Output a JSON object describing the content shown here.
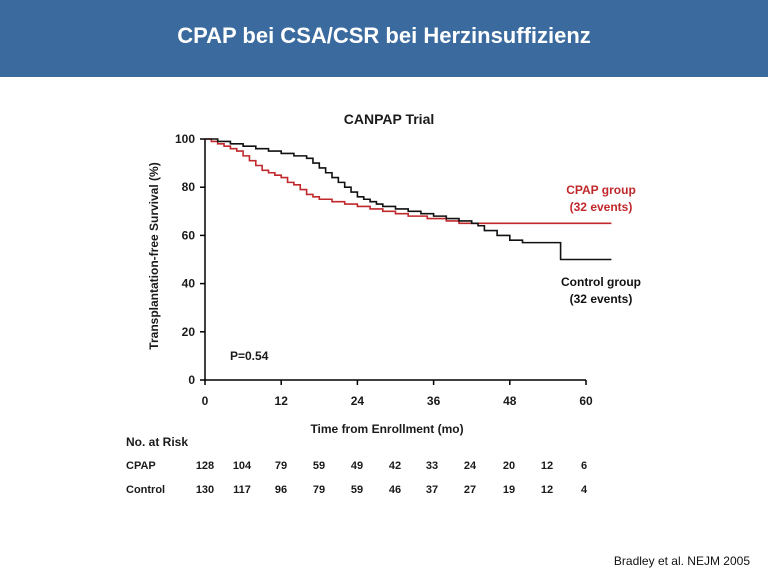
{
  "header": {
    "title": "CPAP bei CSA/CSR bei Herzinsuffizienz"
  },
  "source": "Bradley et al. NEJM 2005",
  "colors": {
    "header_bg": "#3a6a9e",
    "cpap": "#c0282c",
    "control": "#111111"
  },
  "chart_data": {
    "type": "line",
    "title": "CANPAP Trial",
    "xlabel": "Time from Enrollment (mo)",
    "ylabel": "Transplantation-free Survival (%)",
    "xlim": [
      0,
      60
    ],
    "ylim": [
      0,
      100
    ],
    "x_ticks": [
      0,
      12,
      24,
      36,
      48,
      60
    ],
    "y_ticks": [
      0,
      20,
      40,
      60,
      80,
      100
    ],
    "grid": false,
    "p_value": "P=0.54",
    "series": [
      {
        "name": "CPAP group",
        "label_line2": "(32 events)",
        "color": "#c0282c",
        "step": true,
        "points": [
          [
            0,
            100
          ],
          [
            1,
            99
          ],
          [
            2,
            98
          ],
          [
            3,
            97
          ],
          [
            4,
            96
          ],
          [
            5,
            95
          ],
          [
            6,
            93
          ],
          [
            7,
            91
          ],
          [
            8,
            89
          ],
          [
            9,
            87
          ],
          [
            10,
            86
          ],
          [
            11,
            85
          ],
          [
            12,
            84
          ],
          [
            13,
            82
          ],
          [
            14,
            81
          ],
          [
            15,
            79
          ],
          [
            16,
            77
          ],
          [
            17,
            76
          ],
          [
            18,
            75
          ],
          [
            20,
            74
          ],
          [
            22,
            73
          ],
          [
            24,
            72
          ],
          [
            26,
            71
          ],
          [
            28,
            70
          ],
          [
            30,
            69
          ],
          [
            32,
            68
          ],
          [
            35,
            67
          ],
          [
            38,
            66
          ],
          [
            40,
            65
          ],
          [
            44,
            65
          ],
          [
            50,
            65
          ],
          [
            56,
            65
          ],
          [
            64,
            65
          ]
        ]
      },
      {
        "name": "Control group",
        "label_line2": "(32 events)",
        "color": "#111111",
        "step": true,
        "points": [
          [
            0,
            100
          ],
          [
            2,
            99
          ],
          [
            4,
            98
          ],
          [
            6,
            97
          ],
          [
            8,
            96
          ],
          [
            10,
            95
          ],
          [
            12,
            94
          ],
          [
            14,
            93
          ],
          [
            16,
            92
          ],
          [
            17,
            90
          ],
          [
            18,
            88
          ],
          [
            19,
            86
          ],
          [
            20,
            84
          ],
          [
            21,
            82
          ],
          [
            22,
            80
          ],
          [
            23,
            78
          ],
          [
            24,
            76
          ],
          [
            25,
            75
          ],
          [
            26,
            74
          ],
          [
            27,
            73
          ],
          [
            28,
            72
          ],
          [
            30,
            71
          ],
          [
            32,
            70
          ],
          [
            34,
            69
          ],
          [
            36,
            68
          ],
          [
            38,
            67
          ],
          [
            40,
            66
          ],
          [
            42,
            65
          ],
          [
            43,
            64
          ],
          [
            44,
            62
          ],
          [
            46,
            60
          ],
          [
            48,
            58
          ],
          [
            50,
            57
          ],
          [
            52,
            57
          ],
          [
            54,
            57
          ],
          [
            56,
            50
          ],
          [
            64,
            50
          ]
        ]
      }
    ],
    "at_risk": {
      "title": "No. at Risk",
      "times": [
        0,
        6,
        12,
        18,
        24,
        30,
        36,
        42,
        48,
        54,
        60
      ],
      "rows": [
        {
          "label": "CPAP",
          "values": [
            128,
            104,
            79,
            59,
            49,
            42,
            33,
            24,
            20,
            12,
            6
          ]
        },
        {
          "label": "Control",
          "values": [
            130,
            117,
            96,
            79,
            59,
            46,
            37,
            27,
            19,
            12,
            4
          ]
        }
      ]
    }
  }
}
